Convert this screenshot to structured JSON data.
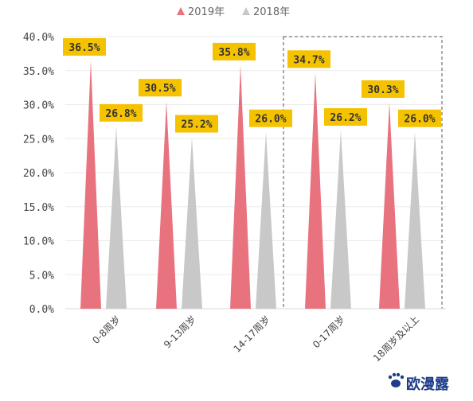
{
  "chart_data": {
    "type": "bar",
    "shape": "triangle",
    "categories": [
      "0-8周岁",
      "9-13周岁",
      "14-17周岁",
      "0-17周岁",
      "18周岁及以上"
    ],
    "series": [
      {
        "name": "2019年",
        "color": "#e8737e",
        "values": [
          36.5,
          30.5,
          35.8,
          34.7,
          30.3
        ],
        "labels": [
          "36.5%",
          "30.5%",
          "35.8%",
          "34.7%",
          "30.3%"
        ]
      },
      {
        "name": "2018年",
        "color": "#c8c8c8",
        "values": [
          26.8,
          25.2,
          26.0,
          26.2,
          26.0
        ],
        "labels": [
          "26.8%",
          "25.2%",
          "26.0%",
          "26.2%",
          "26.0%"
        ]
      }
    ],
    "yticks": [
      "0.0%",
      "5.0%",
      "10.0%",
      "15.0%",
      "20.0%",
      "25.0%",
      "30.0%",
      "35.0%",
      "40.0%"
    ],
    "ylim": [
      0,
      40
    ],
    "legend_position": "top-center",
    "label_bg": "#f5c200",
    "highlight_categories": [
      "0-17周岁",
      "18周岁及以上"
    ],
    "grid": true
  },
  "watermark": {
    "text": "欧漫露",
    "icon": "paw-icon"
  }
}
